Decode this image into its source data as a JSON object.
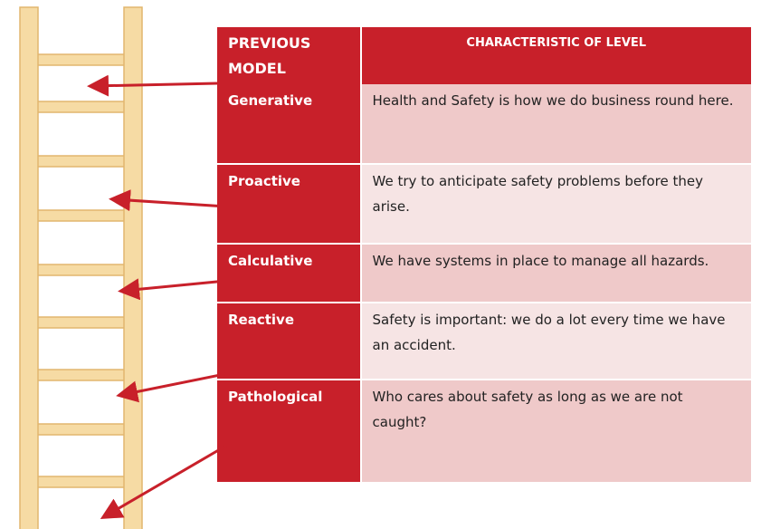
{
  "table": {
    "header": [
      "PREVIOUS MODEL",
      "CHARACTERISTIC OF LEVEL"
    ],
    "rows": [
      [
        "Generative",
        "Health and Safety is how we do business round here."
      ],
      [
        "Proactive",
        "We try to anticipate safety problems before they arise."
      ],
      [
        "Calculative",
        "We have systems in place to manage all hazards."
      ],
      [
        "Reactive",
        "Safety is important: we do a lot every time we have an accident."
      ],
      [
        "Pathological",
        "Who cares about safety as long as we are not caught?"
      ]
    ]
  }
}
